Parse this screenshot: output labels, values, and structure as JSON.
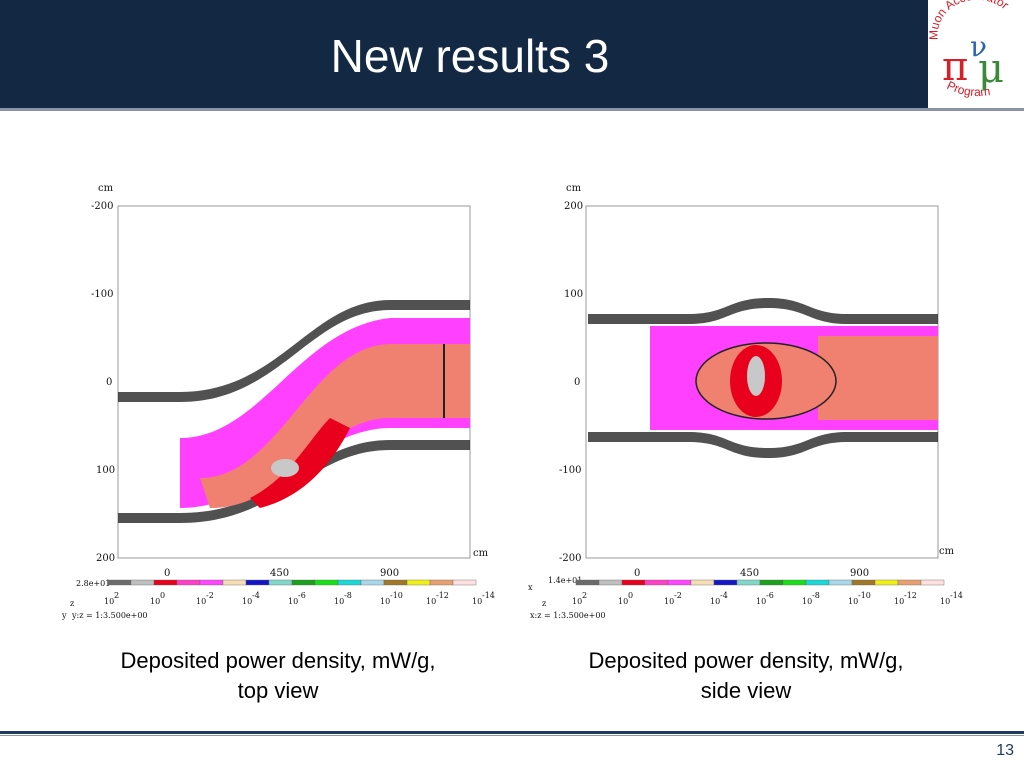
{
  "slide": {
    "title": "New results 3",
    "page_number": "13",
    "logo": {
      "top_text": "Muon Accelerator",
      "bottom_text": "Program",
      "glyphs": [
        "π",
        "ν",
        "μ"
      ],
      "colors": [
        "#d4202a",
        "#2a64b0",
        "#3a8a3a",
        "#6b3fa0"
      ]
    }
  },
  "plots": {
    "left": {
      "y_unit": "cm",
      "y_ticks": [
        "-200",
        "-100",
        "0",
        "100",
        "200"
      ],
      "x_unit": "cm",
      "x_ticks": [
        "0",
        "450",
        "900"
      ],
      "max_label": "2.8e+01",
      "axes_label_1": "z",
      "axes_label_2": "y",
      "scale_label": "y:z = 1:3.500e+00",
      "caption_line1": "Deposited power density, mW/g,",
      "caption_line2": "top view"
    },
    "right": {
      "y_unit": "cm",
      "y_ticks": [
        "200",
        "100",
        "0",
        "-100",
        "-200"
      ],
      "x_unit": "cm",
      "x_ticks": [
        "0",
        "450",
        "900"
      ],
      "max_label": "1.4e+01",
      "axes_label_1": "x",
      "axes_label_2": "z",
      "scale_label": "x:z = 1:3.500e+00",
      "caption_line1": "Deposited power density, mW/g,",
      "caption_line2": "side view"
    },
    "colorbar": {
      "colors": [
        "#6b6b6b",
        "#bfbfbf",
        "#e8001c",
        "#ff3ec8",
        "#ff45ff",
        "#f5deb3",
        "#1515c8",
        "#7fd8c8",
        "#1aa01a",
        "#18e018",
        "#18d8d8",
        "#a8d8e8",
        "#a07828",
        "#f0f018",
        "#e8a070",
        "#ffe0e0"
      ],
      "labels": [
        {
          "base": "10",
          "exp": "2"
        },
        {
          "base": "10",
          "exp": "0"
        },
        {
          "base": "10",
          "exp": "-2"
        },
        {
          "base": "10",
          "exp": "-4"
        },
        {
          "base": "10",
          "exp": "-6"
        },
        {
          "base": "10",
          "exp": "-8"
        },
        {
          "base": "10",
          "exp": "-10"
        },
        {
          "base": "10",
          "exp": "-12"
        },
        {
          "base": "10",
          "exp": "-14"
        }
      ]
    },
    "density_colors": {
      "high": "#e8001c",
      "peak": "#c8c8c8",
      "mid": "#f08070",
      "low": "#ff40ff",
      "very_low": "#1aa01a"
    }
  }
}
